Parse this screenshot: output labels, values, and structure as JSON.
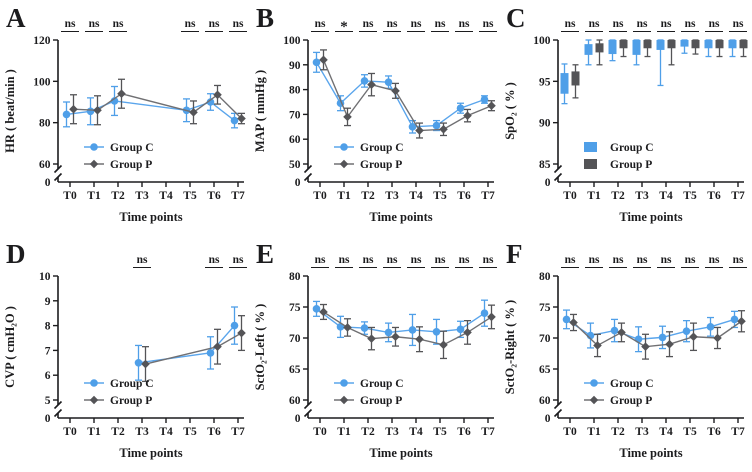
{
  "figure": {
    "background": "#ffffff",
    "axis_color": "#1c1c1e",
    "xlabel": "Time points",
    "origin_label": "0",
    "categories": [
      "T0",
      "T1",
      "T2",
      "T3",
      "T4",
      "T5",
      "T6",
      "T7"
    ],
    "groups": [
      {
        "name": "Group C",
        "marker": "circle",
        "color": "#4f9fe8",
        "line_color": "#5aa5ec"
      },
      {
        "name": "Group P",
        "marker": "diamond",
        "color": "#545457",
        "line_color": "#707073"
      }
    ]
  },
  "chart_data": [
    {
      "panel": "A",
      "type": "line",
      "ylabel": "HR ( beat/min )",
      "xlabel": "Time points",
      "yticks": [
        60,
        80,
        100,
        120
      ],
      "ylim": [
        60,
        120
      ],
      "axis_break": true,
      "categories": [
        "T0",
        "T1",
        "T2",
        "T3",
        "T4",
        "T5",
        "T6",
        "T7"
      ],
      "significance": [
        "ns",
        "ns",
        "ns",
        null,
        null,
        "ns",
        "ns",
        "ns"
      ],
      "series": [
        {
          "name": "Group C",
          "values": [
            84,
            85.5,
            90.5,
            null,
            null,
            86,
            90,
            81
          ],
          "errors": [
            6,
            6.5,
            7,
            null,
            null,
            5.5,
            4,
            3.5
          ]
        },
        {
          "name": "Group P",
          "values": [
            86.5,
            86,
            94,
            null,
            null,
            85,
            93.5,
            82
          ],
          "errors": [
            7,
            7,
            7,
            null,
            null,
            5.5,
            4.5,
            2.5
          ]
        }
      ]
    },
    {
      "panel": "B",
      "type": "line",
      "ylabel": "MAP ( mmHg )",
      "xlabel": "Time points",
      "yticks": [
        50,
        60,
        70,
        80,
        90,
        100
      ],
      "ylim": [
        50,
        100
      ],
      "axis_break": true,
      "categories": [
        "T0",
        "T1",
        "T2",
        "T3",
        "T4",
        "T5",
        "T6",
        "T7"
      ],
      "significance": [
        "ns",
        "*",
        "ns",
        "ns",
        "ns",
        "ns",
        "ns",
        "ns"
      ],
      "series": [
        {
          "name": "Group C",
          "values": [
            91,
            74.5,
            83.5,
            83,
            65,
            65.5,
            72.5,
            76
          ],
          "errors": [
            4,
            3,
            2.5,
            2.5,
            2.5,
            2,
            2,
            1.5
          ]
        },
        {
          "name": "Group P",
          "values": [
            92,
            69,
            82,
            79.5,
            63.5,
            64,
            69.5,
            73.5
          ],
          "errors": [
            4,
            3.5,
            4.5,
            3,
            3,
            2.5,
            2.5,
            2
          ]
        }
      ]
    },
    {
      "panel": "C",
      "type": "box",
      "ylabel": "SpO₂ ( % )",
      "xlabel": "Time points",
      "yticks": [
        85,
        90,
        95,
        100
      ],
      "ylim": [
        85,
        100
      ],
      "axis_break": true,
      "categories": [
        "T0",
        "T1",
        "T2",
        "T3",
        "T4",
        "T5",
        "T6",
        "T7"
      ],
      "significance": [
        "ns",
        "ns",
        "ns",
        "ns",
        "ns",
        "ns",
        "ns",
        "ns"
      ],
      "box_value_order": [
        "whisker_low",
        "box_low",
        "box_high",
        "whisker_high"
      ],
      "series": [
        {
          "name": "Group C",
          "boxes": [
            [
              92.3,
              93.5,
              96.0,
              97.1
            ],
            [
              97.0,
              98.2,
              99.5,
              100
            ],
            [
              97.5,
              98.3,
              100,
              100
            ],
            [
              97.0,
              98.2,
              100,
              100
            ],
            [
              94.5,
              98.8,
              100,
              100
            ],
            [
              98.4,
              99.2,
              100,
              100
            ],
            [
              98.0,
              99.0,
              100,
              100
            ],
            [
              98.0,
              99.0,
              100,
              100
            ]
          ]
        },
        {
          "name": "Group P",
          "boxes": [
            [
              93.0,
              94.5,
              96.2,
              97.0
            ],
            [
              97.0,
              98.5,
              99.6,
              100
            ],
            [
              98.0,
              99.0,
              100,
              100
            ],
            [
              98.0,
              99.0,
              100,
              100
            ],
            [
              97.0,
              99.0,
              100,
              100
            ],
            [
              98.3,
              99.0,
              100,
              100
            ],
            [
              98.0,
              99.0,
              100,
              100
            ],
            [
              98.0,
              99.0,
              100,
              100
            ]
          ]
        }
      ]
    },
    {
      "panel": "D",
      "type": "line",
      "ylabel": "CVP ( cmH₂O )",
      "xlabel": "Time points",
      "yticks": [
        5,
        6,
        7,
        8,
        9,
        10
      ],
      "ylim": [
        5,
        10
      ],
      "axis_break": true,
      "categories": [
        "T0",
        "T1",
        "T2",
        "T3",
        "T4",
        "T5",
        "T6",
        "T7"
      ],
      "significance": [
        null,
        null,
        null,
        "ns",
        null,
        null,
        "ns",
        "ns"
      ],
      "series": [
        {
          "name": "Group C",
          "values": [
            null,
            null,
            null,
            6.5,
            null,
            null,
            6.9,
            8.0
          ],
          "errors": [
            null,
            null,
            null,
            0.7,
            null,
            null,
            0.65,
            0.75
          ]
        },
        {
          "name": "Group P",
          "values": [
            null,
            null,
            null,
            6.45,
            null,
            null,
            7.15,
            7.7
          ],
          "errors": [
            null,
            null,
            null,
            0.7,
            null,
            null,
            0.7,
            0.7
          ]
        }
      ]
    },
    {
      "panel": "E",
      "type": "line",
      "ylabel": "SctO₂-Left ( % )",
      "xlabel": "Time points",
      "yticks": [
        60,
        65,
        70,
        75,
        80
      ],
      "ylim": [
        60,
        80
      ],
      "axis_break": true,
      "categories": [
        "T0",
        "T1",
        "T2",
        "T3",
        "T4",
        "T5",
        "T6",
        "T7"
      ],
      "significance": [
        "ns",
        "ns",
        "ns",
        "ns",
        "ns",
        "ns",
        "ns",
        "ns"
      ],
      "series": [
        {
          "name": "Group C",
          "values": [
            74.7,
            71.8,
            71.6,
            70.9,
            71.3,
            71.0,
            71.4,
            74.0
          ],
          "errors": [
            1.2,
            1.7,
            1.0,
            1.5,
            2.5,
            2.0,
            1.3,
            2.1
          ]
        },
        {
          "name": "Group P",
          "values": [
            74.2,
            71.7,
            69.9,
            70.2,
            69.8,
            68.9,
            70.9,
            73.4
          ],
          "errors": [
            1.2,
            1.4,
            1.8,
            1.5,
            2.0,
            2.2,
            1.9,
            1.9
          ]
        }
      ]
    },
    {
      "panel": "F",
      "type": "line",
      "ylabel": "SctO₂-Right ( % )",
      "xlabel": "Time points",
      "yticks": [
        60,
        65,
        70,
        75,
        80
      ],
      "ylim": [
        60,
        80
      ],
      "axis_break": true,
      "categories": [
        "T0",
        "T1",
        "T2",
        "T3",
        "T4",
        "T5",
        "T6",
        "T7"
      ],
      "significance": [
        "ns",
        "ns",
        "ns",
        "ns",
        "ns",
        "ns",
        "ns",
        "ns"
      ],
      "series": [
        {
          "name": "Group C",
          "values": [
            73.0,
            70.4,
            71.2,
            69.8,
            70.1,
            71.1,
            71.8,
            73.0
          ],
          "errors": [
            1.5,
            2.0,
            1.8,
            2.0,
            1.8,
            1.7,
            1.5,
            1.3
          ]
        },
        {
          "name": "Group P",
          "values": [
            72.5,
            68.8,
            70.9,
            68.6,
            69.0,
            70.2,
            70.0,
            72.7
          ],
          "errors": [
            1.3,
            1.8,
            1.5,
            2.0,
            2.0,
            2.2,
            1.7,
            1.7
          ]
        }
      ]
    }
  ]
}
